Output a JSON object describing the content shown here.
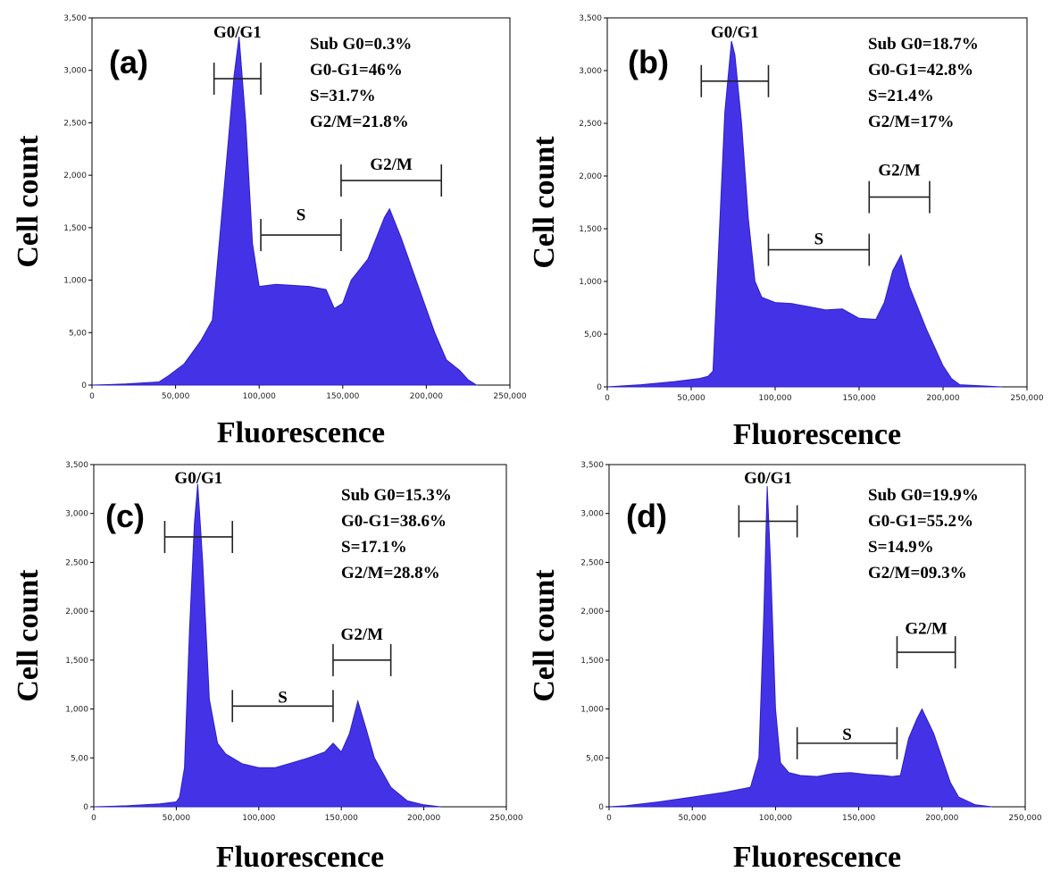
{
  "figure": {
    "colors": {
      "fill": "#4433e6",
      "stroke": "#2a1fc4",
      "gate": "#222222",
      "frame": "#000000"
    }
  },
  "chart_data": [
    {
      "type": "area",
      "panel_label": "(a)",
      "xlabel": "Fluorescence",
      "ylabel": "Cell count",
      "xlim": [
        0,
        250000
      ],
      "ylim": [
        0,
        3500
      ],
      "xticks": [
        "0",
        "50,000",
        "100,000",
        "150,000",
        "200,000",
        "250,000"
      ],
      "yticks": [
        "0",
        "5,00",
        "1,000",
        "1,500",
        "2,000",
        "2,500",
        "3,000",
        "3,500"
      ],
      "stats": [
        "Sub G0=0.3%",
        "G0-G1=46%",
        "S=31.7%",
        "G2/M=21.8%"
      ],
      "gates": [
        {
          "label": "G0/G1",
          "x": [
            73000,
            101000
          ],
          "y": 2920,
          "label_y": 3380
        },
        {
          "label": "S",
          "x": [
            101000,
            149000
          ],
          "y": 1430,
          "label_y": 1640
        },
        {
          "label": "G2/M",
          "x": [
            149000,
            209000
          ],
          "y": 1950,
          "label_y": 2120
        }
      ],
      "x": [
        0,
        20000,
        40000,
        45000,
        55000,
        65000,
        72000,
        80000,
        85000,
        88000,
        92000,
        96000,
        100000,
        110000,
        120000,
        130000,
        140000,
        145000,
        150000,
        155000,
        165000,
        175000,
        178000,
        185000,
        195000,
        205000,
        212000,
        220000,
        225000,
        230000
      ],
      "values": [
        0,
        10,
        30,
        80,
        200,
        420,
        620,
        2050,
        2950,
        3320,
        2500,
        1350,
        940,
        960,
        950,
        940,
        910,
        730,
        780,
        1000,
        1200,
        1600,
        1680,
        1400,
        950,
        500,
        240,
        140,
        50,
        0
      ]
    },
    {
      "type": "area",
      "panel_label": "(b)",
      "xlabel": "Fluorescence",
      "ylabel": "Cell count",
      "xlim": [
        0,
        250000
      ],
      "ylim": [
        0,
        3500
      ],
      "xticks": [
        "0",
        "50,000",
        "100,000",
        "150,000",
        "200,000",
        "250,000"
      ],
      "yticks": [
        "0",
        "5,00",
        "1,000",
        "1,500",
        "2,000",
        "2,500",
        "3,000",
        "3,500"
      ],
      "stats": [
        "Sub G0=18.7%",
        "G0-G1=42.8%",
        "S=21.4%",
        "G2/M=17%"
      ],
      "gates": [
        {
          "label": "G0/G1",
          "x": [
            56000,
            96000
          ],
          "y": 2900,
          "label_y": 3380
        },
        {
          "label": "S",
          "x": [
            96000,
            156000
          ],
          "y": 1300,
          "label_y": 1420
        },
        {
          "label": "G2/M",
          "x": [
            156000,
            192000
          ],
          "y": 1800,
          "label_y": 2070
        }
      ],
      "x": [
        0,
        20000,
        40000,
        55000,
        60000,
        63000,
        66000,
        70000,
        74000,
        76000,
        80000,
        84000,
        88000,
        92000,
        100000,
        110000,
        120000,
        130000,
        140000,
        150000,
        160000,
        165000,
        170000,
        175000,
        180000,
        190000,
        200000,
        205000,
        210000,
        235000
      ],
      "values": [
        0,
        20,
        50,
        80,
        100,
        150,
        1200,
        2600,
        3280,
        3150,
        2500,
        1600,
        1000,
        850,
        800,
        790,
        760,
        730,
        740,
        650,
        640,
        800,
        1100,
        1250,
        950,
        550,
        200,
        80,
        20,
        0
      ]
    },
    {
      "type": "area",
      "panel_label": "(c)",
      "xlabel": "Fluorescence",
      "ylabel": "Cell count",
      "xlim": [
        0,
        250000
      ],
      "ylim": [
        0,
        3500
      ],
      "xticks": [
        "0",
        "50,000",
        "100,000",
        "150,000",
        "200,000",
        "250,000"
      ],
      "yticks": [
        "0",
        "5,00",
        "1,000",
        "1,500",
        "2,000",
        "2,500",
        "3,000",
        "3,500"
      ],
      "stats": [
        "Sub G0=15.3%",
        "G0-G1=38.6%",
        "S=17.1%",
        "G2/M=28.8%"
      ],
      "gates": [
        {
          "label": "G0/G1",
          "x": [
            43000,
            84000
          ],
          "y": 2760,
          "label_y": 3380
        },
        {
          "label": "S",
          "x": [
            84000,
            145000
          ],
          "y": 1030,
          "label_y": 1140
        },
        {
          "label": "G2/M",
          "x": [
            145000,
            180000
          ],
          "y": 1500,
          "label_y": 1780
        }
      ],
      "x": [
        0,
        20000,
        40000,
        50000,
        52000,
        55000,
        58000,
        61000,
        63000,
        66000,
        70000,
        75000,
        80000,
        90000,
        100000,
        110000,
        120000,
        130000,
        140000,
        145000,
        150000,
        155000,
        160000,
        165000,
        170000,
        180000,
        190000,
        200000,
        210000
      ],
      "values": [
        0,
        10,
        30,
        50,
        100,
        400,
        1800,
        2900,
        3300,
        2500,
        1100,
        650,
        540,
        440,
        400,
        400,
        450,
        500,
        560,
        650,
        560,
        750,
        1080,
        800,
        500,
        200,
        60,
        20,
        0
      ]
    },
    {
      "type": "area",
      "panel_label": "(d)",
      "xlabel": "Fluorescence",
      "ylabel": "Cell count",
      "xlim": [
        0,
        250000
      ],
      "ylim": [
        0,
        3500
      ],
      "xticks": [
        "0",
        "50,000",
        "100,000",
        "150,000",
        "200,000",
        "250,000"
      ],
      "yticks": [
        "0",
        "5,00",
        "1,000",
        "1,500",
        "2,000",
        "2,500",
        "3,000",
        "3,500"
      ],
      "stats": [
        "Sub G0=19.9%",
        "G0-G1=55.2%",
        "S=14.9%",
        "G2/M=09.3%"
      ],
      "gates": [
        {
          "label": "G0/G1",
          "x": [
            78000,
            113000
          ],
          "y": 2920,
          "label_y": 3380
        },
        {
          "label": "S",
          "x": [
            113000,
            173000
          ],
          "y": 650,
          "label_y": 760
        },
        {
          "label": "G2/M",
          "x": [
            173000,
            208000
          ],
          "y": 1580,
          "label_y": 1840
        }
      ],
      "x": [
        0,
        10000,
        30000,
        50000,
        70000,
        85000,
        90000,
        93000,
        95000,
        97000,
        100000,
        103000,
        108000,
        115000,
        125000,
        135000,
        145000,
        155000,
        165000,
        170000,
        175000,
        180000,
        185000,
        188000,
        195000,
        200000,
        205000,
        210000,
        220000,
        230000
      ],
      "values": [
        0,
        10,
        50,
        100,
        150,
        200,
        500,
        2000,
        3280,
        2500,
        1000,
        450,
        350,
        320,
        310,
        340,
        350,
        330,
        320,
        310,
        320,
        700,
        900,
        1000,
        750,
        500,
        250,
        100,
        20,
        0
      ]
    }
  ]
}
